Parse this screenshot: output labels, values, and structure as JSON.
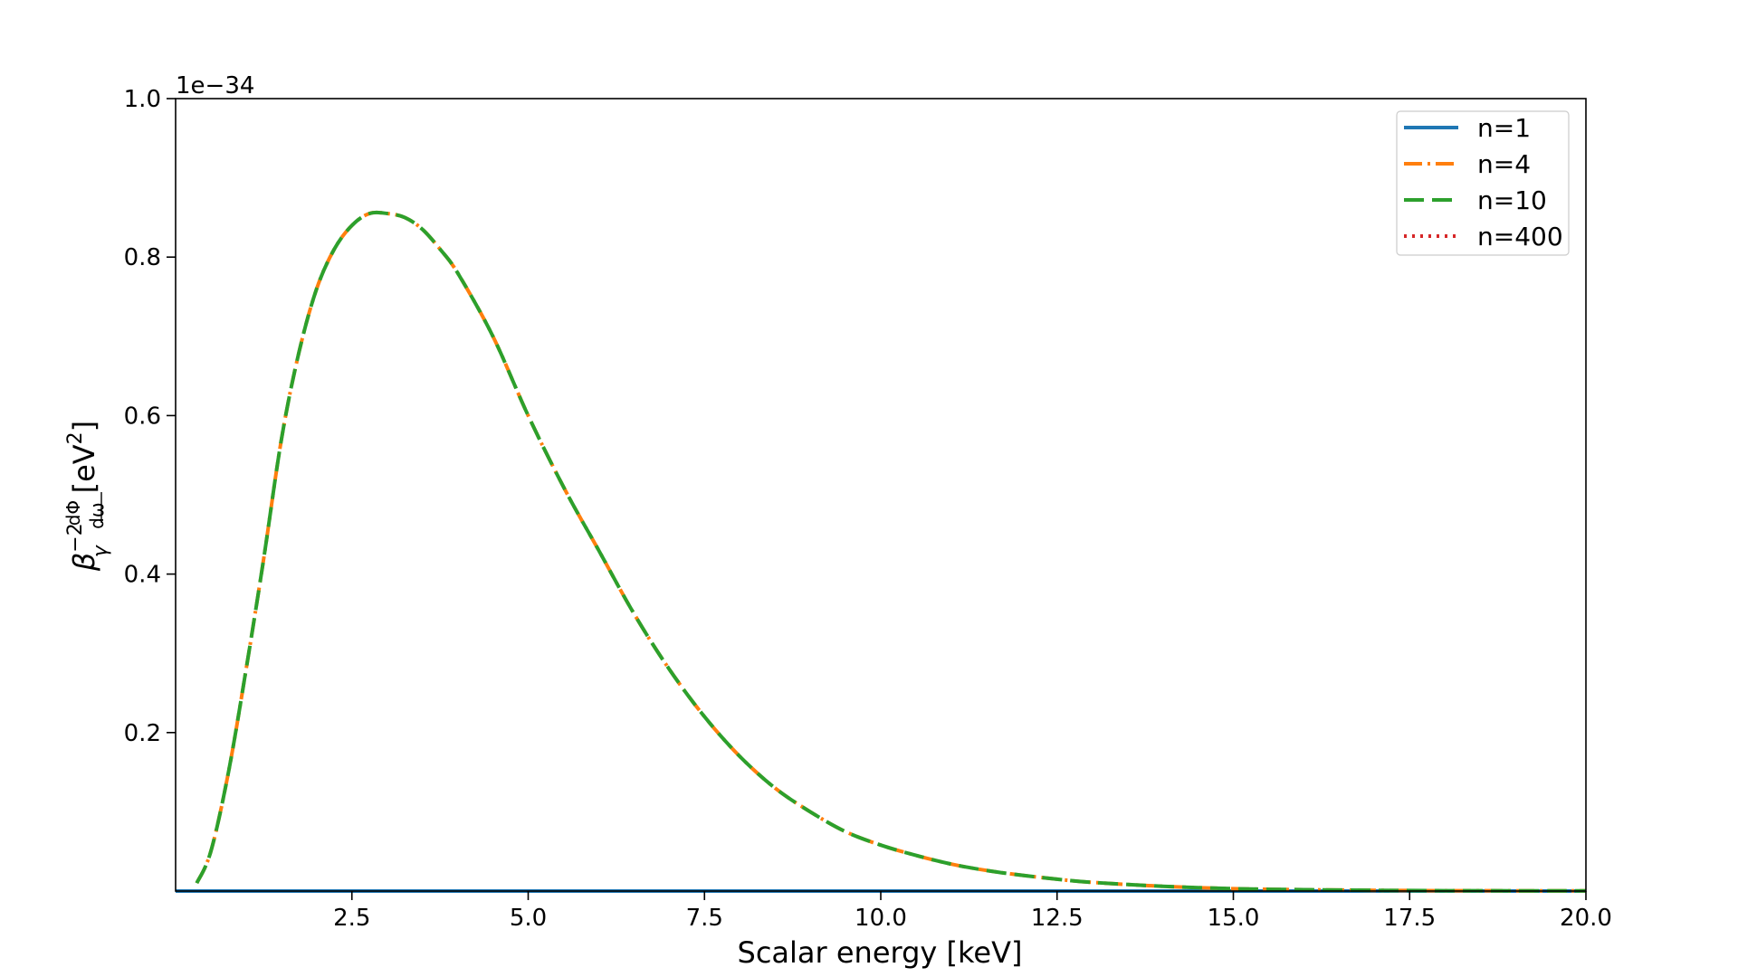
{
  "chart_data": {
    "type": "line",
    "xlabel": "Scalar energy [keV]",
    "ylabel_parts": {
      "beta": "β",
      "superscript": "−2",
      "subscript": "γ",
      "frac_num": "dΦ",
      "frac_den": "dω",
      "unit_open": "[eV",
      "unit_sup": "2",
      "unit_close": "]"
    },
    "y_offset_text": "1e−34",
    "xlim": [
      0,
      20
    ],
    "ylim": [
      0,
      1.0
    ],
    "y_scale_note": "values in units of 1e-34",
    "xticks": [
      2.5,
      5.0,
      7.5,
      10.0,
      12.5,
      15.0,
      17.5,
      20.0
    ],
    "xtick_labels": [
      "2.5",
      "5.0",
      "7.5",
      "10.0",
      "12.5",
      "15.0",
      "17.5",
      "20.0"
    ],
    "yticks": [
      0.2,
      0.4,
      0.6,
      0.8,
      1.0
    ],
    "ytick_labels": [
      "0.2",
      "0.4",
      "0.6",
      "0.8",
      "1.0"
    ],
    "grid": false,
    "legend_placement": "top-right",
    "series": [
      {
        "name": "n=1",
        "color": "#1f77b4",
        "style": "solid",
        "x": [
          0,
          2,
          4,
          6,
          8,
          10,
          12,
          14,
          16,
          18,
          20
        ],
        "y": [
          0,
          0,
          0,
          0,
          0,
          0,
          0,
          0,
          0,
          0,
          0
        ]
      },
      {
        "name": "n=4",
        "color": "#ff7f0e",
        "style": "dashdot",
        "x": [
          0.3,
          0.5,
          0.75,
          1.0,
          1.25,
          1.5,
          1.75,
          2.0,
          2.25,
          2.5,
          2.75,
          3.0,
          3.25,
          3.5,
          3.75,
          4.0,
          4.5,
          5.0,
          5.5,
          6.0,
          6.5,
          7.0,
          7.5,
          8.0,
          8.5,
          9.0,
          9.5,
          10.0,
          10.5,
          11.0,
          11.5,
          12.0,
          12.5,
          13.0,
          14.0,
          15.0,
          16.0,
          17.0,
          18.0,
          19.0,
          20.0
        ],
        "y": [
          0.01,
          0.05,
          0.15,
          0.28,
          0.42,
          0.57,
          0.68,
          0.76,
          0.81,
          0.84,
          0.855,
          0.855,
          0.85,
          0.835,
          0.81,
          0.78,
          0.7,
          0.6,
          0.51,
          0.43,
          0.35,
          0.28,
          0.22,
          0.17,
          0.13,
          0.1,
          0.075,
          0.058,
          0.045,
          0.034,
          0.026,
          0.02,
          0.015,
          0.011,
          0.006,
          0.003,
          0.0017,
          0.0009,
          0.0005,
          0.0003,
          0.0002
        ]
      },
      {
        "name": "n=10",
        "color": "#2ca02c",
        "style": "dashed",
        "x": [
          0.3,
          0.5,
          0.75,
          1.0,
          1.25,
          1.5,
          1.75,
          2.0,
          2.25,
          2.5,
          2.75,
          3.0,
          3.25,
          3.5,
          3.75,
          4.0,
          4.5,
          5.0,
          5.5,
          6.0,
          6.5,
          7.0,
          7.5,
          8.0,
          8.5,
          9.0,
          9.5,
          10.0,
          10.5,
          11.0,
          11.5,
          12.0,
          12.5,
          13.0,
          14.0,
          15.0,
          16.0,
          17.0,
          18.0,
          19.0,
          20.0
        ],
        "y": [
          0.01,
          0.05,
          0.15,
          0.28,
          0.42,
          0.57,
          0.68,
          0.76,
          0.81,
          0.84,
          0.855,
          0.855,
          0.85,
          0.835,
          0.81,
          0.78,
          0.7,
          0.6,
          0.51,
          0.43,
          0.35,
          0.28,
          0.22,
          0.17,
          0.13,
          0.1,
          0.075,
          0.058,
          0.045,
          0.034,
          0.026,
          0.02,
          0.015,
          0.011,
          0.006,
          0.003,
          0.0017,
          0.0009,
          0.0005,
          0.0003,
          0.0002
        ]
      },
      {
        "name": "n=400",
        "color": "#d62728",
        "style": "dotted",
        "x": [],
        "y": []
      }
    ]
  }
}
